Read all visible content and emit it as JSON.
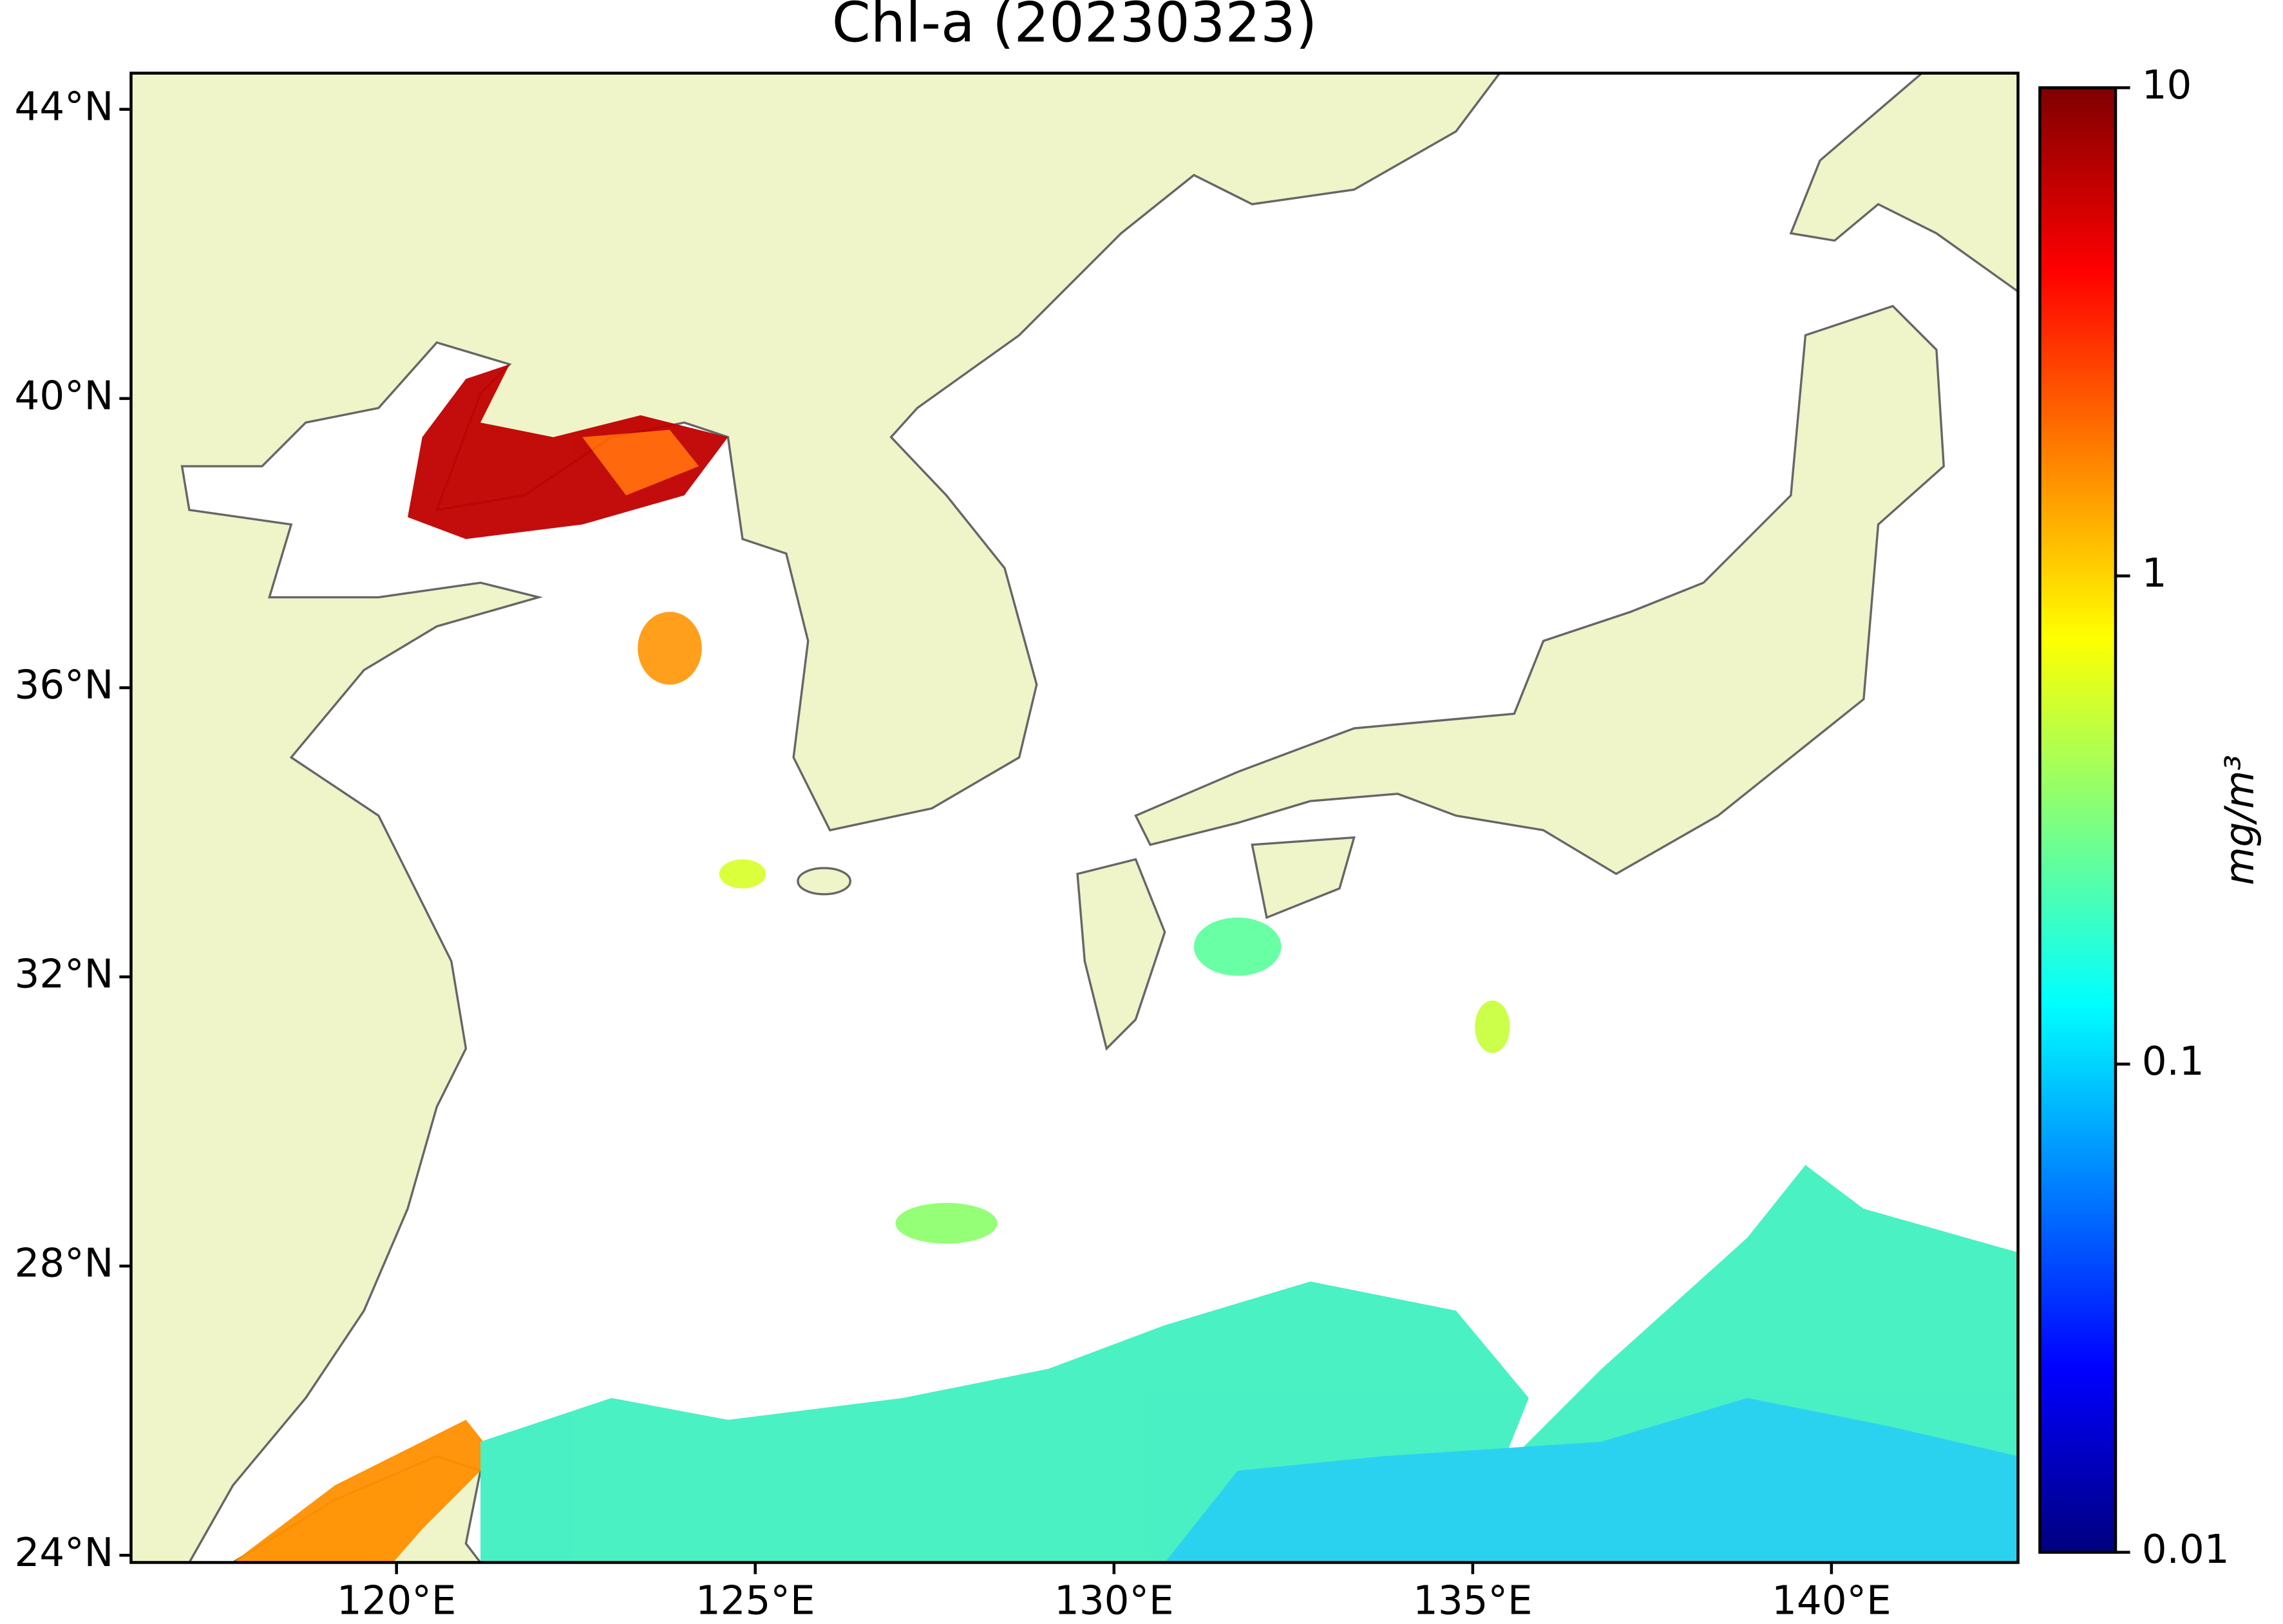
{
  "chart_data": {
    "type": "map",
    "title": "Chl-a (20230323)",
    "xlim": [
      116.3,
      142.6
    ],
    "ylim": [
      23.9,
      44.5
    ],
    "xticks": [
      {
        "value": 120,
        "label": "120°E"
      },
      {
        "value": 125,
        "label": "125°E"
      },
      {
        "value": 130,
        "label": "130°E"
      },
      {
        "value": 135,
        "label": "135°E"
      },
      {
        "value": 140,
        "label": "140°E"
      }
    ],
    "yticks": [
      {
        "value": 24,
        "label": "24°N"
      },
      {
        "value": 28,
        "label": "28°N"
      },
      {
        "value": 32,
        "label": "32°N"
      },
      {
        "value": 36,
        "label": "36°N"
      },
      {
        "value": 40,
        "label": "40°N"
      },
      {
        "value": 44,
        "label": "44°N"
      }
    ],
    "land_color": "#eff4c9",
    "colorbar": {
      "label": "mg/m³",
      "lim": [
        0.01,
        10
      ],
      "ticks": [
        0.01,
        0.1,
        1,
        10
      ],
      "log": true,
      "colors": [
        "#00007f",
        "#0000ff",
        "#007fff",
        "#00ffff",
        "#7fff7f",
        "#ffff00",
        "#ff7f00",
        "#ff0000",
        "#7f0000"
      ]
    }
  }
}
